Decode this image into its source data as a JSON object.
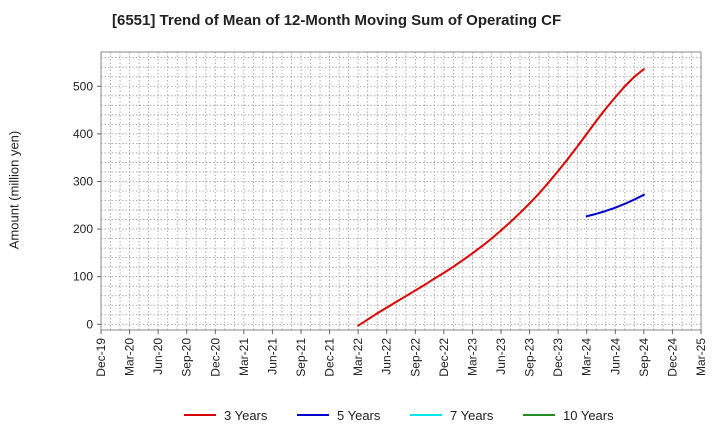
{
  "chart_data": {
    "type": "line",
    "title": "[6551]  Trend of Mean of 12-Month Moving Sum of Operating CF",
    "xlabel": "",
    "ylabel": "Amount (million yen)",
    "x_ticks": [
      "Dec-19",
      "Mar-20",
      "Jun-20",
      "Sep-20",
      "Dec-20",
      "Mar-21",
      "Jun-21",
      "Sep-21",
      "Dec-21",
      "Mar-22",
      "Jun-22",
      "Sep-22",
      "Dec-22",
      "Mar-23",
      "Jun-23",
      "Sep-23",
      "Dec-23",
      "Mar-24",
      "Jun-24",
      "Sep-24",
      "Dec-24",
      "Mar-25"
    ],
    "y_ticks": [
      0,
      100,
      200,
      300,
      400,
      500
    ],
    "ylim": [
      -12,
      572
    ],
    "grid": true,
    "legend_position": "bottom",
    "series": [
      {
        "name": "3 Years",
        "color": "#dd0000",
        "x": [
          "Mar-22",
          "Apr-22",
          "May-22",
          "Jun-22",
          "Jul-22",
          "Aug-22",
          "Sep-22",
          "Oct-22",
          "Nov-22",
          "Dec-22",
          "Jan-23",
          "Feb-23",
          "Mar-23",
          "Apr-23",
          "May-23",
          "Jun-23",
          "Jul-23",
          "Aug-23",
          "Sep-23",
          "Oct-23",
          "Nov-23",
          "Dec-23",
          "Jan-24",
          "Feb-24",
          "Mar-24",
          "Apr-24",
          "May-24",
          "Jun-24",
          "Jul-24",
          "Aug-24",
          "Sep-24"
        ],
        "values": [
          -3,
          10,
          23,
          35,
          47,
          59,
          71,
          83,
          96,
          108,
          121,
          135,
          149,
          164,
          180,
          197,
          215,
          234,
          254,
          275,
          298,
          322,
          347,
          373,
          400,
          427,
          453,
          477,
          500,
          520,
          536
        ]
      },
      {
        "name": "5 Years",
        "color": "#0000cc",
        "x": [
          "Mar-24",
          "Apr-24",
          "May-24",
          "Jun-24",
          "Jul-24",
          "Aug-24",
          "Sep-24"
        ],
        "values": [
          227,
          232,
          238,
          245,
          253,
          262,
          272
        ]
      },
      {
        "name": "7 Years",
        "color": "#00e5ee",
        "x": [],
        "values": []
      },
      {
        "name": "10 Years",
        "color": "#228b22",
        "x": [],
        "values": []
      }
    ]
  }
}
